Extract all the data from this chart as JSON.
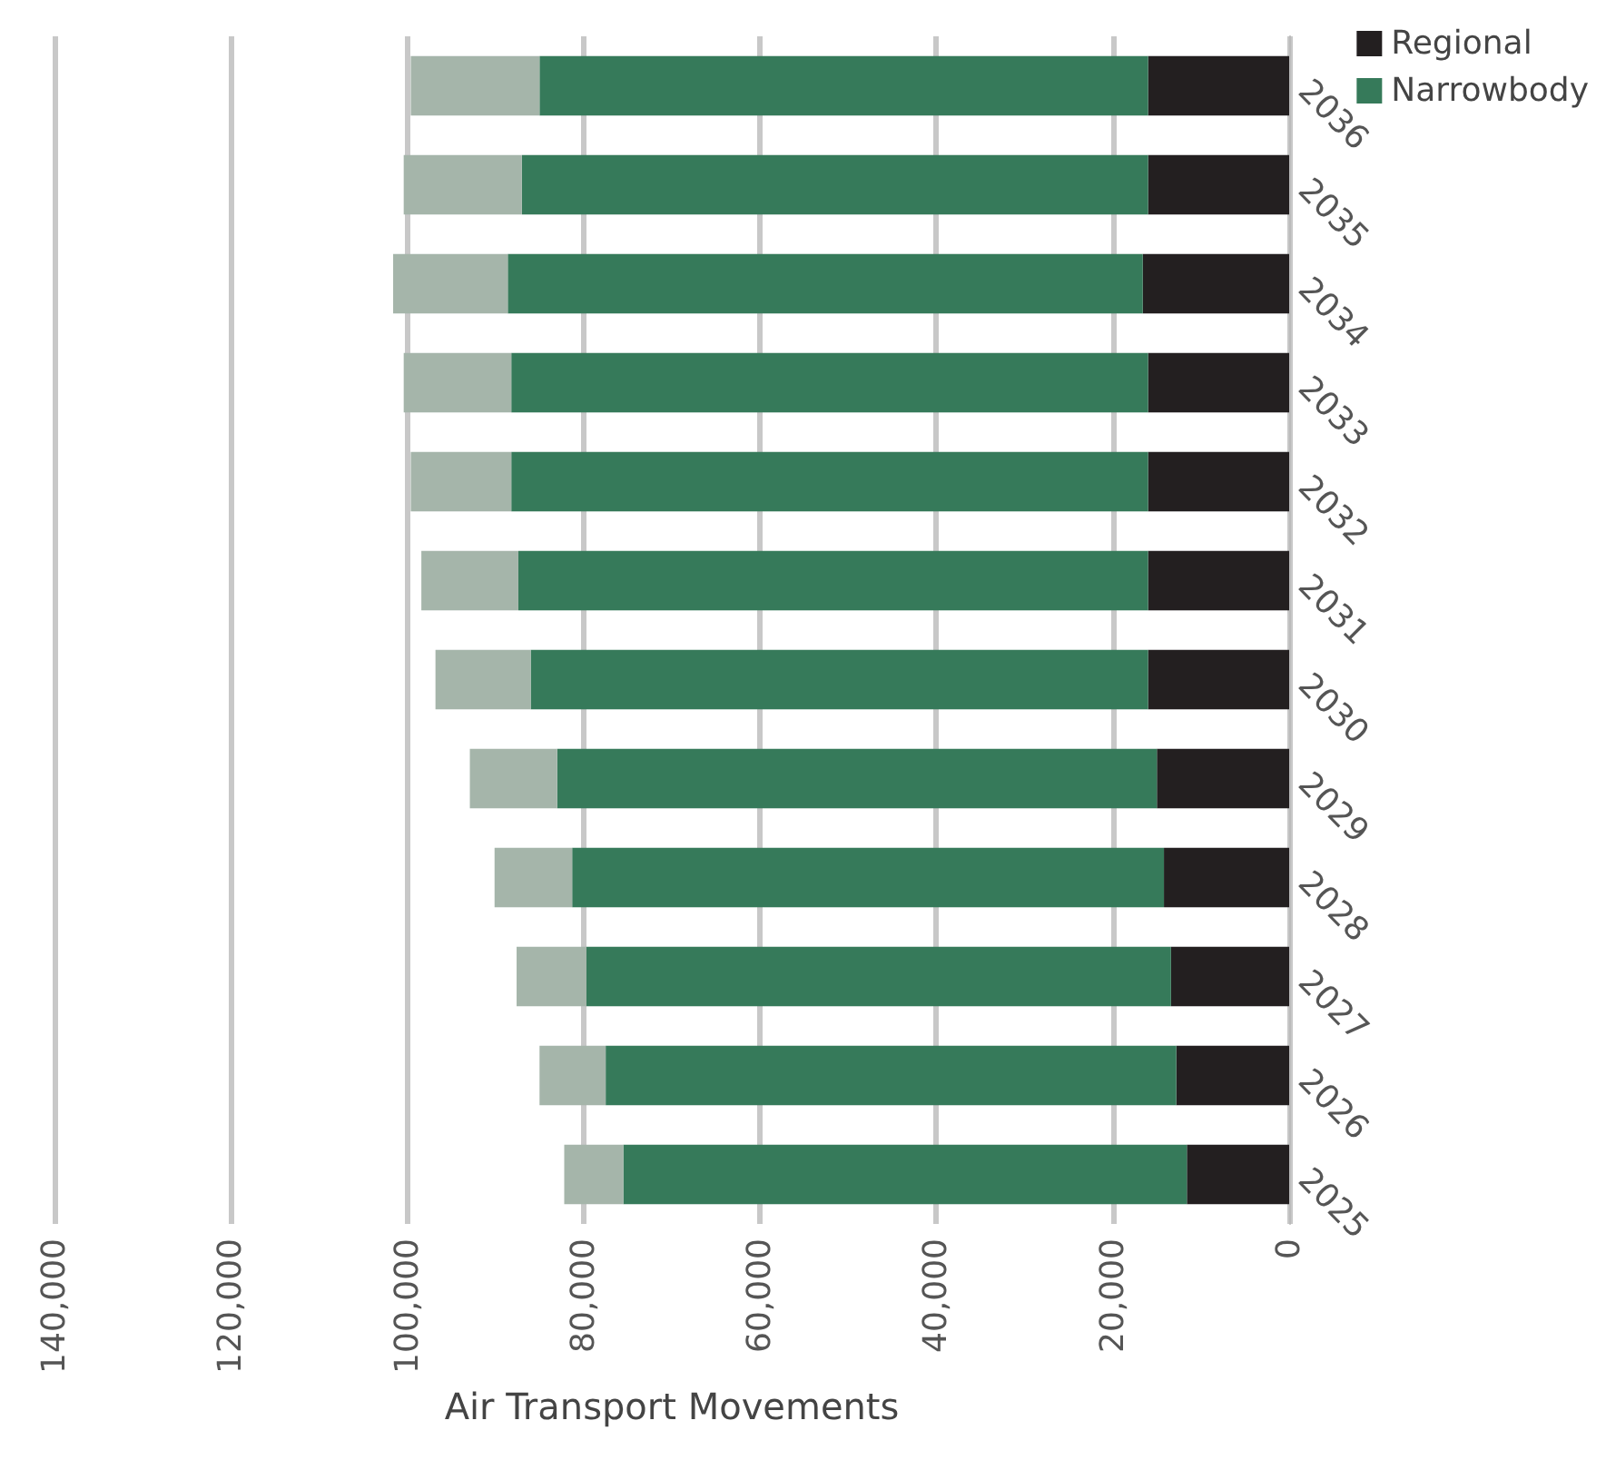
{
  "chart_data": {
    "type": "bar",
    "orientation": "horizontal",
    "stacked": true,
    "xlabel": "Air Transport Movements",
    "categories": [
      "2036",
      "2035",
      "2034",
      "2033",
      "2032",
      "2031",
      "2030",
      "2029",
      "2028",
      "2027",
      "2026",
      "2025"
    ],
    "series": [
      {
        "name": "Regional",
        "color": "#231f20",
        "values": [
          16000,
          16000,
          16600,
          16000,
          16000,
          16000,
          16000,
          15000,
          14200,
          13400,
          12800,
          11600
        ]
      },
      {
        "name": "Narrowbody",
        "color": "#367a5a",
        "values": [
          69000,
          71000,
          72000,
          72200,
          72200,
          71400,
          70000,
          68000,
          67100,
          66300,
          64700,
          63900
        ]
      },
      {
        "color": "#a5b5aa",
        "values": [
          14600,
          13400,
          13000,
          12200,
          11400,
          11000,
          10800,
          9900,
          8800,
          7900,
          7500,
          6700
        ]
      }
    ],
    "xlim": [
      140000,
      0
    ],
    "xticks": [
      {
        "value": 140000,
        "label": "140,000"
      },
      {
        "value": 120000,
        "label": "120,000"
      },
      {
        "value": 100000,
        "label": "100,000"
      },
      {
        "value": 80000,
        "label": "80,000"
      },
      {
        "value": 60000,
        "label": "60,000"
      },
      {
        "value": 40000,
        "label": "40,000"
      },
      {
        "value": 20000,
        "label": "20,000"
      },
      0
    ],
    "grid": "x",
    "legend": "top right"
  }
}
